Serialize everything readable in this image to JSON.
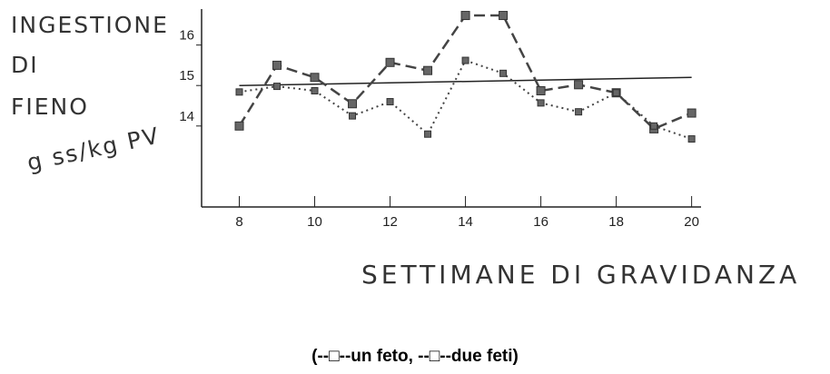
{
  "chart_data": {
    "type": "line",
    "y_label_lines": [
      "INGESTIONE",
      "DI",
      "FIENO",
      "g ss/kg PV"
    ],
    "x_label": "SETTIMANE DI GRAVIDANZA",
    "caption": "(--□--un feto, --□--due feti)",
    "x": [
      8,
      9,
      10,
      11,
      12,
      13,
      14,
      15,
      16,
      17,
      18,
      19,
      20
    ],
    "series": [
      {
        "color": "#444",
        "style": "dashed",
        "values": [
          14.0,
          15.5,
          15.2,
          14.55,
          15.57,
          15.37,
          16.73,
          16.73,
          14.87,
          15.02,
          14.82,
          13.93,
          14.32
        ]
      },
      {
        "color": "#444",
        "style": "dotted",
        "values": [
          14.84,
          14.98,
          14.87,
          14.25,
          14.6,
          13.8,
          15.62,
          15.3,
          14.57,
          14.35,
          14.82,
          14.0,
          13.68
        ]
      }
    ],
    "reference_line": {
      "x": [
        8,
        20
      ],
      "values": [
        15.0,
        15.2
      ],
      "color": "#222"
    },
    "xlim": [
      7,
      20.25
    ],
    "ylim": [
      12,
      17
    ],
    "xticks": [
      8,
      10,
      12,
      14,
      16,
      18,
      20
    ],
    "yticks": [
      14,
      15,
      16
    ]
  }
}
